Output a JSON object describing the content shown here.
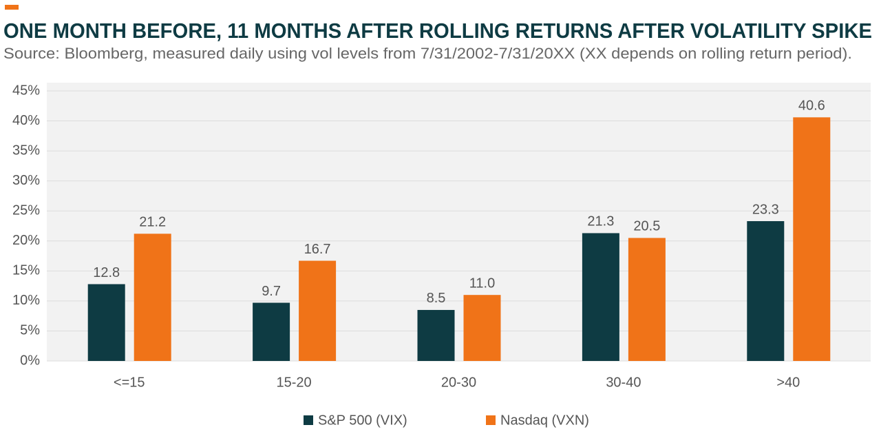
{
  "chart_data": {
    "type": "bar",
    "title": "ONE MONTH BEFORE, 11 MONTHS AFTER ROLLING RETURNS AFTER VOLATILITY SPIKE",
    "subtitle": "Source: Bloomberg, measured daily using vol levels from 7/31/2002-7/31/20XX (XX depends on rolling return period).",
    "categories": [
      "<=15",
      "15-20",
      "20-30",
      "30-40",
      ">40"
    ],
    "series": [
      {
        "name": "S&P 500 (VIX)",
        "color": "#0e3b43",
        "values": [
          12.8,
          9.7,
          8.5,
          21.3,
          23.3
        ],
        "value_labels": [
          "12.8",
          "9.7",
          "8.5",
          "21.3",
          "23.3"
        ]
      },
      {
        "name": "Nasdaq (VXN)",
        "color": "#f07318",
        "values": [
          21.2,
          16.7,
          11,
          20.5,
          40.6
        ],
        "value_labels": [
          "21.2",
          "16.7",
          "11.0",
          "20.5",
          "40.6"
        ]
      }
    ],
    "ylim": [
      0,
      45
    ],
    "yticks": [
      {
        "value": 0,
        "label": "0%"
      },
      {
        "value": 5,
        "label": "5%"
      },
      {
        "value": 10,
        "label": "10%"
      },
      {
        "value": 15,
        "label": "15%"
      },
      {
        "value": 20,
        "label": "20%"
      },
      {
        "value": 25,
        "label": "25%"
      },
      {
        "value": 30,
        "label": "30%"
      },
      {
        "value": 35,
        "label": "35%"
      },
      {
        "value": 40,
        "label": "40%"
      },
      {
        "value": 45,
        "label": "45%"
      }
    ],
    "grid": true
  }
}
